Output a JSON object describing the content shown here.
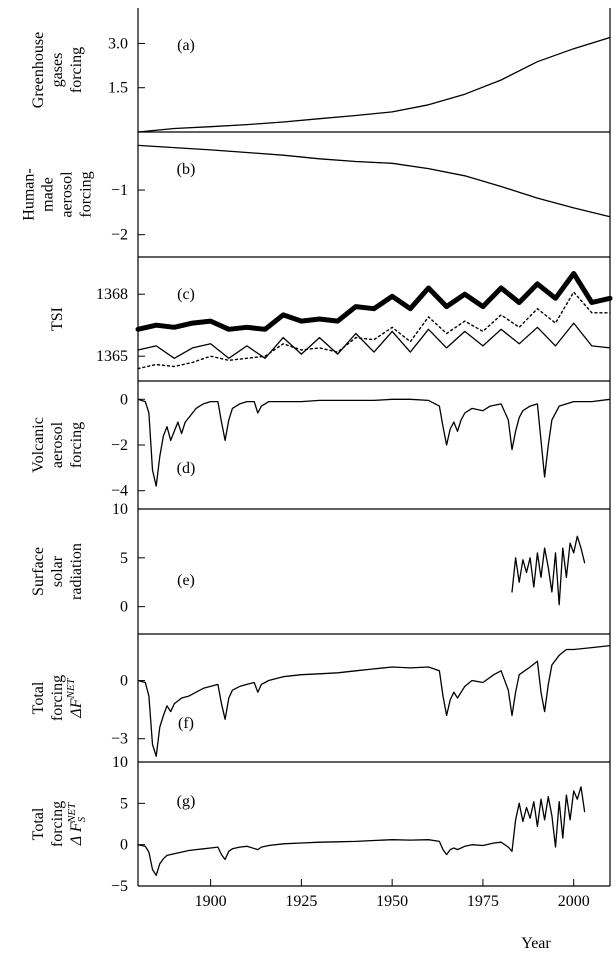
{
  "chart_data": {
    "type": "line",
    "x_axis": {
      "label": "Year",
      "range": [
        1880,
        2010
      ],
      "ticks": [
        1900,
        1925,
        1950,
        1975,
        2000
      ]
    },
    "panels": [
      {
        "id": "a",
        "label": "(a)",
        "ylabel_lines": [
          "Greenhouse",
          "gases",
          "forcing"
        ],
        "ylim": [
          0,
          4.2
        ],
        "ticks": [
          1.5,
          3.0
        ],
        "tick_labels": [
          "1.5",
          "3.0"
        ],
        "series": [
          {
            "style": "thin",
            "x": [
              1880,
              1890,
              1900,
              1910,
              1920,
              1930,
              1940,
              1950,
              1960,
              1970,
              1980,
              1990,
              2000,
              2010
            ],
            "y": [
              0.0,
              0.12,
              0.18,
              0.25,
              0.34,
              0.45,
              0.56,
              0.68,
              0.92,
              1.28,
              1.76,
              2.38,
              2.82,
              3.2
            ]
          }
        ]
      },
      {
        "id": "b",
        "label": "(b)",
        "ylabel_lines": [
          "Human-",
          "made",
          "aerosol",
          "forcing"
        ],
        "ylim": [
          -2.5,
          0.3
        ],
        "ticks": [
          -2,
          -1
        ],
        "tick_labels": [
          "−2",
          "−1"
        ],
        "series": [
          {
            "style": "thin",
            "x": [
              1880,
              1890,
              1900,
              1910,
              1920,
              1930,
              1940,
              1950,
              1960,
              1970,
              1980,
              1990,
              2000,
              2010
            ],
            "y": [
              0.0,
              -0.05,
              -0.1,
              -0.16,
              -0.22,
              -0.3,
              -0.36,
              -0.4,
              -0.52,
              -0.68,
              -0.92,
              -1.18,
              -1.4,
              -1.6
            ]
          }
        ]
      },
      {
        "id": "c",
        "label": "(c)",
        "ylabel_lines": [
          "TSI"
        ],
        "ylim": [
          1363.8,
          1369.8
        ],
        "ticks": [
          1365,
          1368
        ],
        "tick_labels": [
          "1365",
          "1368"
        ],
        "series": [
          {
            "style": "thick",
            "x": [
              1880,
              1885,
              1890,
              1895,
              1900,
              1905,
              1910,
              1915,
              1920,
              1925,
              1930,
              1935,
              1940,
              1945,
              1950,
              1955,
              1960,
              1965,
              1970,
              1975,
              1980,
              1985,
              1990,
              1995,
              2000,
              2005,
              2010
            ],
            "y": [
              1366.3,
              1366.5,
              1366.4,
              1366.6,
              1366.7,
              1366.3,
              1366.4,
              1366.3,
              1367.0,
              1366.7,
              1366.8,
              1366.7,
              1367.4,
              1367.3,
              1367.9,
              1367.3,
              1368.3,
              1367.4,
              1368.0,
              1367.4,
              1368.3,
              1367.6,
              1368.5,
              1367.8,
              1369.0,
              1367.6,
              1367.8
            ]
          },
          {
            "style": "dotted",
            "x": [
              1880,
              1885,
              1890,
              1895,
              1900,
              1905,
              1910,
              1915,
              1920,
              1925,
              1930,
              1935,
              1940,
              1945,
              1950,
              1955,
              1960,
              1965,
              1970,
              1975,
              1980,
              1985,
              1990,
              1995,
              2000,
              2005,
              2010
            ],
            "y": [
              1364.4,
              1364.6,
              1364.5,
              1364.7,
              1365.0,
              1364.8,
              1364.9,
              1365.0,
              1365.6,
              1365.3,
              1365.4,
              1365.2,
              1365.9,
              1365.8,
              1366.4,
              1365.7,
              1366.9,
              1366.1,
              1366.7,
              1366.2,
              1367.0,
              1366.4,
              1367.3,
              1366.6,
              1368.1,
              1367.1,
              1367.1
            ]
          },
          {
            "style": "thin",
            "x": [
              1880,
              1885,
              1890,
              1895,
              1900,
              1905,
              1910,
              1915,
              1920,
              1925,
              1930,
              1935,
              1940,
              1945,
              1950,
              1955,
              1960,
              1965,
              1970,
              1975,
              1980,
              1985,
              1990,
              1995,
              2000,
              2005,
              2010
            ],
            "y": [
              1365.3,
              1365.5,
              1364.9,
              1365.4,
              1365.6,
              1364.9,
              1365.5,
              1364.9,
              1365.9,
              1365.1,
              1365.9,
              1365.1,
              1366.1,
              1365.2,
              1366.2,
              1365.2,
              1366.3,
              1365.4,
              1366.2,
              1365.5,
              1366.3,
              1365.6,
              1366.4,
              1365.5,
              1366.6,
              1365.5,
              1365.4
            ]
          }
        ]
      },
      {
        "id": "d",
        "label": "(d)",
        "ylabel_lines": [
          "Volcanic",
          "aerosol",
          "forcing"
        ],
        "ylim": [
          -4.8,
          0.8
        ],
        "ticks": [
          -4,
          -2,
          0
        ],
        "tick_labels": [
          "−4",
          "−2",
          "0"
        ],
        "series": [
          {
            "style": "thin",
            "x": [
              1880,
              1882,
              1883,
              1884,
              1885,
              1886,
              1887,
              1888,
              1889,
              1890,
              1891,
              1892,
              1893,
              1894,
              1895,
              1896,
              1897,
              1898,
              1900,
              1902,
              1903,
              1904,
              1905,
              1906,
              1908,
              1910,
              1912,
              1913,
              1914,
              1915,
              1916,
              1918,
              1920,
              1925,
              1930,
              1935,
              1940,
              1945,
              1950,
              1955,
              1960,
              1963,
              1964,
              1965,
              1966,
              1967,
              1968,
              1969,
              1970,
              1971,
              1972,
              1975,
              1977,
              1980,
              1982,
              1983,
              1984,
              1985,
              1986,
              1988,
              1990,
              1991,
              1992,
              1993,
              1994,
              1996,
              1998,
              2000,
              2005,
              2010
            ],
            "y": [
              0,
              -0.1,
              -0.6,
              -3.1,
              -3.8,
              -2.5,
              -1.6,
              -1.2,
              -1.8,
              -1.4,
              -1.0,
              -1.5,
              -1.0,
              -0.8,
              -0.6,
              -0.4,
              -0.3,
              -0.2,
              -0.1,
              -0.1,
              -1.0,
              -1.8,
              -0.9,
              -0.4,
              -0.2,
              -0.1,
              -0.1,
              -0.6,
              -0.3,
              -0.2,
              -0.1,
              -0.1,
              -0.1,
              -0.1,
              -0.05,
              -0.05,
              -0.05,
              -0.05,
              0,
              0,
              -0.05,
              -0.3,
              -1.2,
              -2.0,
              -1.3,
              -1.0,
              -1.4,
              -0.9,
              -0.6,
              -0.5,
              -0.4,
              -0.5,
              -0.3,
              -0.2,
              -0.9,
              -2.2,
              -1.4,
              -0.8,
              -0.5,
              -0.3,
              -0.2,
              -1.8,
              -3.4,
              -2.0,
              -0.9,
              -0.3,
              -0.2,
              -0.1,
              -0.1,
              0
            ]
          }
        ]
      },
      {
        "id": "e",
        "label": "(e)",
        "ylabel_lines": [
          "Surface",
          "solar",
          "radiation"
        ],
        "ylim": [
          -2.8,
          10
        ],
        "ticks": [
          0,
          5,
          10
        ],
        "tick_labels": [
          "0",
          "5",
          "10"
        ],
        "series": [
          {
            "style": "thin",
            "x": [
              1983,
              1984,
              1985,
              1986,
              1987,
              1988,
              1989,
              1990,
              1991,
              1992,
              1993,
              1994,
              1995,
              1996,
              1997,
              1998,
              1999,
              2000,
              2001,
              2002,
              2003
            ],
            "y": [
              1.5,
              5.0,
              2.5,
              4.8,
              3.5,
              5.0,
              2.0,
              5.5,
              3.0,
              6.0,
              4.0,
              1.5,
              5.5,
              0.2,
              6.0,
              3.0,
              6.5,
              5.5,
              7.2,
              6.0,
              4.5
            ]
          }
        ]
      },
      {
        "id": "f",
        "label": "(f)",
        "ylabel_lines": [
          "Total",
          "forcing"
        ],
        "ylabel_symbol": {
          "base": "ΔF",
          "sup": "NET",
          "sub": ""
        },
        "ylim": [
          -4.2,
          2.4
        ],
        "ticks": [
          -3,
          0
        ],
        "tick_labels": [
          "−3",
          "0"
        ],
        "series": [
          {
            "style": "thin",
            "x": [
              1880,
              1882,
              1883,
              1884,
              1885,
              1886,
              1887,
              1888,
              1889,
              1890,
              1892,
              1894,
              1896,
              1898,
              1900,
              1902,
              1903,
              1904,
              1905,
              1906,
              1908,
              1910,
              1912,
              1913,
              1914,
              1916,
              1920,
              1925,
              1930,
              1935,
              1940,
              1945,
              1950,
              1955,
              1960,
              1963,
              1964,
              1965,
              1966,
              1967,
              1968,
              1970,
              1972,
              1975,
              1978,
              1980,
              1982,
              1983,
              1984,
              1985,
              1988,
              1990,
              1991,
              1992,
              1993,
              1994,
              1996,
              1998,
              2000,
              2005,
              2010
            ],
            "y": [
              0,
              -0.1,
              -0.8,
              -3.3,
              -3.9,
              -2.4,
              -1.8,
              -1.3,
              -1.6,
              -1.2,
              -0.9,
              -0.8,
              -0.6,
              -0.4,
              -0.3,
              -0.2,
              -1.2,
              -2.0,
              -0.9,
              -0.5,
              -0.3,
              -0.2,
              -0.1,
              -0.6,
              -0.2,
              0,
              0.2,
              0.3,
              0.35,
              0.4,
              0.5,
              0.6,
              0.7,
              0.65,
              0.7,
              0.5,
              -0.8,
              -1.8,
              -1.0,
              -0.6,
              -0.9,
              -0.3,
              0,
              -0.1,
              0.3,
              0.5,
              -0.5,
              -1.8,
              -0.6,
              0.3,
              0.7,
              1.0,
              -0.6,
              -1.6,
              -0.2,
              0.8,
              1.3,
              1.6,
              1.6,
              1.7,
              1.8
            ]
          }
        ]
      },
      {
        "id": "g",
        "label": "(g)",
        "ylabel_lines": [
          "Total",
          "forcing"
        ],
        "ylabel_symbol": {
          "base": "Δ F",
          "sup": "NET",
          "sub": "S"
        },
        "ylim": [
          -5,
          10
        ],
        "ticks": [
          -5,
          0,
          5,
          10
        ],
        "tick_labels": [
          "−5",
          "0",
          "5",
          "10"
        ],
        "series": [
          {
            "style": "thin",
            "x": [
              1880,
              1882,
              1883,
              1884,
              1885,
              1886,
              1887,
              1888,
              1890,
              1892,
              1894,
              1896,
              1898,
              1900,
              1902,
              1903,
              1904,
              1905,
              1906,
              1908,
              1910,
              1913,
              1914,
              1916,
              1920,
              1925,
              1930,
              1935,
              1940,
              1945,
              1950,
              1955,
              1960,
              1963,
              1964,
              1965,
              1966,
              1967,
              1968,
              1970,
              1972,
              1975,
              1978,
              1980,
              1982,
              1983,
              1984,
              1985,
              1986,
              1987,
              1988,
              1989,
              1990,
              1991,
              1992,
              1993,
              1994,
              1995,
              1996,
              1997,
              1998,
              1999,
              2000,
              2001,
              2002,
              2003
            ],
            "y": [
              0,
              -0.2,
              -0.9,
              -3.0,
              -3.7,
              -2.3,
              -1.7,
              -1.3,
              -1.1,
              -0.9,
              -0.7,
              -0.6,
              -0.5,
              -0.4,
              -0.3,
              -1.2,
              -1.8,
              -0.8,
              -0.5,
              -0.3,
              -0.2,
              -0.6,
              -0.3,
              -0.1,
              0.1,
              0.2,
              0.3,
              0.35,
              0.4,
              0.5,
              0.6,
              0.55,
              0.6,
              0.4,
              -0.6,
              -1.2,
              -0.6,
              -0.4,
              -0.6,
              -0.2,
              0,
              -0.1,
              0.2,
              0.3,
              -0.3,
              -0.8,
              3.0,
              5.0,
              2.8,
              4.5,
              3.2,
              5.2,
              2.2,
              5.5,
              3.0,
              5.8,
              3.5,
              -0.3,
              5.2,
              0.8,
              6.0,
              3.0,
              6.5,
              5.5,
              7.0,
              4.0
            ]
          }
        ]
      }
    ]
  }
}
